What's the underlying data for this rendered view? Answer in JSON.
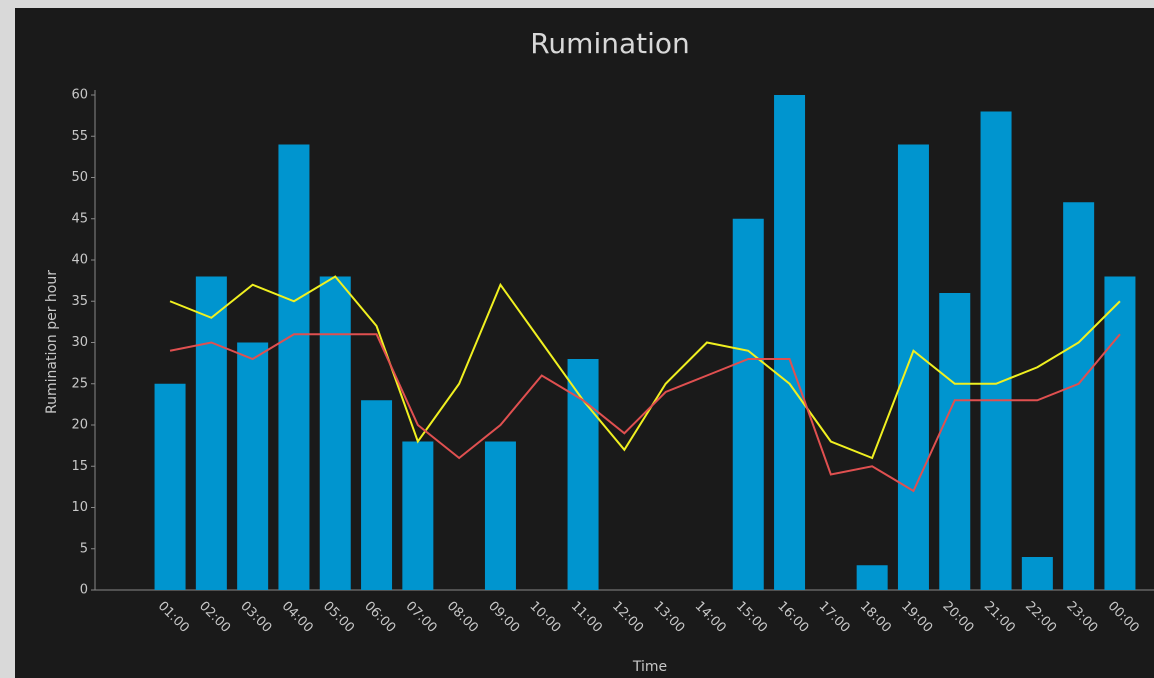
{
  "chart_data": {
    "type": "bar",
    "title": "Rumination",
    "ylabel": "Rumination per hour",
    "xlabel": "Time",
    "categories": [
      "01:00",
      "02:00",
      "03:00",
      "04:00",
      "05:00",
      "06:00",
      "07:00",
      "08:00",
      "09:00",
      "10:00",
      "11:00",
      "12:00",
      "13:00",
      "14:00",
      "15:00",
      "16:00",
      "17:00",
      "18:00",
      "19:00",
      "20:00",
      "21:00",
      "22:00",
      "23:00",
      "00:00"
    ],
    "series": [
      {
        "type": "bar",
        "color": "#0095cf",
        "values": [
          25,
          38,
          30,
          54,
          38,
          23,
          18,
          0,
          18,
          0,
          28,
          0,
          0,
          0,
          45,
          60,
          0,
          3,
          54,
          36,
          58,
          4,
          47,
          38
        ]
      },
      {
        "type": "line",
        "color": "#f0f020",
        "values": [
          35,
          33,
          37,
          35,
          38,
          32,
          18,
          25,
          37,
          30,
          23,
          17,
          25,
          30,
          29,
          25,
          18,
          16,
          29,
          25,
          25,
          27,
          30,
          35
        ]
      },
      {
        "type": "line",
        "color": "#e05050",
        "values": [
          29,
          30,
          28,
          31,
          31,
          31,
          20,
          16,
          20,
          26,
          23,
          19,
          24,
          26,
          28,
          28,
          14,
          15,
          12,
          23,
          23,
          23,
          25,
          31
        ]
      }
    ],
    "ylim": [
      0,
      60
    ],
    "yticks": [
      0,
      5,
      10,
      15,
      20,
      25,
      30,
      35,
      40,
      45,
      50,
      55,
      60
    ]
  }
}
